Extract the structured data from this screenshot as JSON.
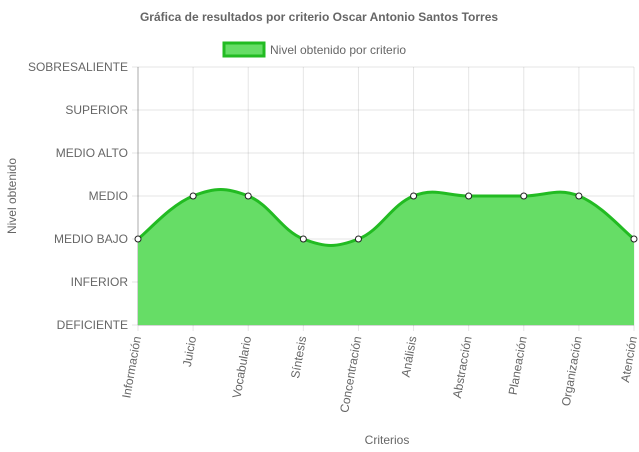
{
  "chart_data": {
    "type": "area",
    "title": "Gráfica de resultados por criterio Oscar Antonio Santos Torres",
    "xlabel": "Criterios",
    "ylabel": "Nivel obtenido",
    "y_levels": [
      "DEFICIENTE",
      "INFERIOR",
      "MEDIO BAJO",
      "MEDIO",
      "MEDIO ALTO",
      "SUPERIOR",
      "SOBRESALIENTE"
    ],
    "ylim": [
      0,
      6
    ],
    "categories": [
      "Información",
      "Juicio",
      "Vocabulario",
      "Síntesis",
      "Concentración",
      "Análisis",
      "Abstracción",
      "Planeación",
      "Organización",
      "Atención"
    ],
    "series": [
      {
        "name": "Nivel obtenido por criterio",
        "values": [
          2,
          3,
          3,
          2,
          2,
          3,
          3,
          3,
          3,
          2
        ],
        "fill_color": "#66dd66",
        "line_color": "#22bb22"
      }
    ],
    "legend_position": "top",
    "grid": true
  }
}
